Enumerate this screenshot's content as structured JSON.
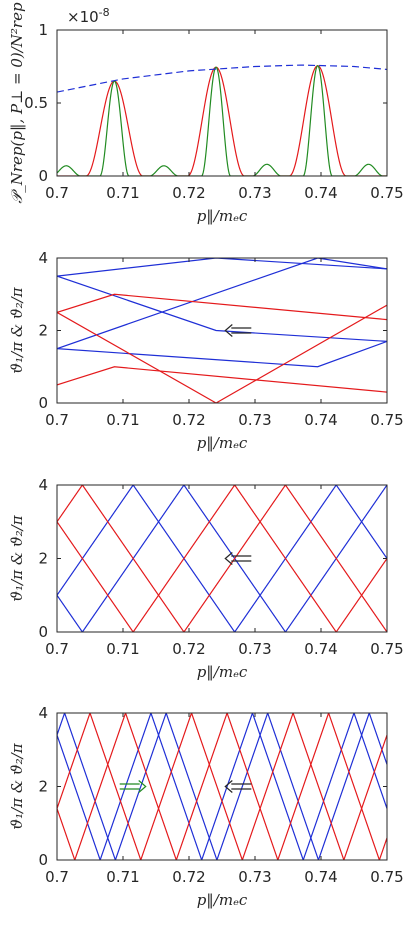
{
  "chart_data": [
    {
      "type": "line",
      "xlabel": "p‖/mₑc",
      "ylabel": "𝒫_Nrep(p‖, P⊥ = 0)/N²rep",
      "x_range": [
        0.7,
        0.75
      ],
      "y_range": [
        0,
        1
      ],
      "y_exponent": "×10",
      "y_exponent_power": "-8",
      "x_ticks": [
        "0.7",
        "0.71",
        "0.72",
        "0.73",
        "0.74",
        "0.75"
      ],
      "y_ticks": [
        "0",
        "0.5",
        "1"
      ],
      "series": [
        {
          "color": "#e41a1c",
          "style": "solid",
          "peaks": [
            0.7087,
            0.7241,
            0.7395
          ],
          "amplitudes": [
            0.65,
            0.745,
            0.755
          ],
          "width": 0.0043
        },
        {
          "color": "#228b22",
          "style": "solid",
          "peaks": [
            0.7014,
            0.7087,
            0.7162,
            0.7241,
            0.7318,
            0.7395,
            0.7472
          ],
          "amplitudes": [
            0.07,
            0.65,
            0.07,
            0.745,
            0.08,
            0.755,
            0.08
          ],
          "width": 0.0022
        },
        {
          "color": "#1f2fd6",
          "style": "dashed",
          "x": [
            0.7,
            0.71,
            0.72,
            0.73,
            0.737,
            0.745,
            0.75
          ],
          "y": [
            0.575,
            0.665,
            0.72,
            0.75,
            0.76,
            0.75,
            0.73
          ]
        }
      ]
    },
    {
      "type": "line",
      "xlabel": "p‖/mₑc",
      "ylabel": "ϑ₁/π & ϑ₂/π",
      "x_range": [
        0.7,
        0.75
      ],
      "y_range": [
        0,
        4
      ],
      "x_ticks": [
        "0.7",
        "0.71",
        "0.72",
        "0.73",
        "0.74",
        "0.75"
      ],
      "y_ticks": [
        "0",
        "2",
        "4"
      ],
      "series": [
        {
          "color": "#1f2fd6",
          "x": [
            0.7,
            0.7241,
            0.75
          ],
          "y": [
            3.5,
            4.0,
            3.7
          ]
        },
        {
          "color": "#1f2fd6",
          "x": [
            0.7,
            0.7241,
            0.75
          ],
          "y": [
            3.5,
            2.0,
            1.7
          ]
        },
        {
          "color": "#1f2fd6",
          "x": [
            0.7,
            0.7395,
            0.75
          ],
          "y": [
            1.5,
            4.0,
            3.7
          ]
        },
        {
          "color": "#1f2fd6",
          "x": [
            0.7,
            0.7395,
            0.75
          ],
          "y": [
            1.5,
            1.0,
            1.7
          ]
        },
        {
          "color": "#e41a1c",
          "x": [
            0.7,
            0.7087,
            0.75
          ],
          "y": [
            2.5,
            3.0,
            2.3
          ]
        },
        {
          "color": "#e41a1c",
          "x": [
            0.7,
            0.7241,
            0.75
          ],
          "y": [
            2.5,
            0.0,
            2.7
          ]
        },
        {
          "color": "#e41a1c",
          "x": [
            0.7,
            0.7087,
            0.75
          ],
          "y": [
            0.5,
            1.0,
            0.3
          ]
        }
      ],
      "arrows": [
        {
          "direction": "left",
          "color": "#262626",
          "x": 0.7255,
          "y": 2.0
        }
      ]
    },
    {
      "type": "line",
      "xlabel": "p‖/mₑc",
      "ylabel": "ϑ₁/π & ϑ₂/π",
      "x_range": [
        0.7,
        0.75
      ],
      "y_range": [
        0,
        4
      ],
      "x_ticks": [
        "0.7",
        "0.71",
        "0.72",
        "0.73",
        "0.74",
        "0.75"
      ],
      "y_ticks": [
        "0",
        "2",
        "4"
      ],
      "zigzag": [
        {
          "color": "#1f2fd6",
          "slope": 260,
          "offset": 1.0
        },
        {
          "color": "#1f2fd6",
          "slope": -260,
          "offset": 1.0
        },
        {
          "color": "#e41a1c",
          "slope": 260,
          "offset": 3.0
        },
        {
          "color": "#e41a1c",
          "slope": -260,
          "offset": 3.0
        }
      ],
      "arrows": [
        {
          "direction": "left",
          "color": "#262626",
          "x": 0.7255,
          "y": 2.0
        }
      ]
    },
    {
      "type": "line",
      "xlabel": "p‖/mₑc",
      "ylabel": "ϑ₁/π & ϑ₂/π",
      "x_range": [
        0.7,
        0.75
      ],
      "y_range": [
        0,
        4
      ],
      "x_ticks": [
        "0.7",
        "0.71",
        "0.72",
        "0.73",
        "0.74",
        "0.75"
      ],
      "y_ticks": [
        "0",
        "2",
        "4"
      ],
      "zigzag": [
        {
          "color": "#1f2fd6",
          "slope": 520,
          "offset": 3.4
        },
        {
          "color": "#1f2fd6",
          "slope": -520,
          "offset": 3.4
        },
        {
          "color": "#e41a1c",
          "slope": 520,
          "offset": 1.4
        },
        {
          "color": "#e41a1c",
          "slope": -520,
          "offset": 1.4
        }
      ],
      "arrows": [
        {
          "direction": "right",
          "color": "#228b22",
          "x": 0.7095,
          "y": 2.0
        },
        {
          "direction": "left",
          "color": "#262626",
          "x": 0.7255,
          "y": 2.0
        }
      ]
    }
  ]
}
